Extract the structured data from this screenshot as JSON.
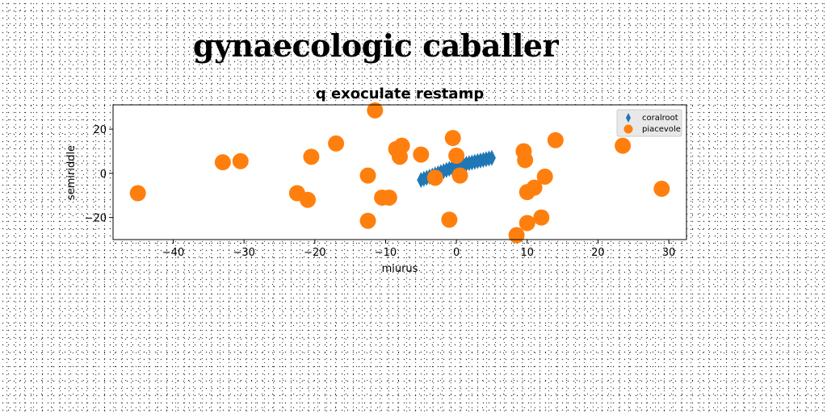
{
  "page": {
    "title": "gynaecologic caballer"
  },
  "chart_data": {
    "type": "scatter",
    "title": "q exoculate restamp",
    "xlabel": "miurus",
    "ylabel": "semiriddle",
    "xlim": [
      -48.5,
      32.5
    ],
    "ylim": [
      -30,
      31
    ],
    "xticks": [
      -40,
      -30,
      -20,
      -10,
      0,
      10,
      20,
      30
    ],
    "yticks": [
      -20,
      0,
      20
    ],
    "grid": false,
    "legend_position": "top-right",
    "series": [
      {
        "name": "coralroot",
        "marker": "thin-diamond",
        "color": "#1f77b4",
        "x": [
          -5.0,
          -4.6,
          -4.2,
          -3.8,
          -3.4,
          -3.0,
          -2.6,
          -2.2,
          -1.8,
          -1.4,
          -1.0,
          -0.6,
          -0.2,
          0.2,
          0.6,
          1.0,
          1.4,
          1.8,
          2.2,
          2.6,
          3.0,
          3.4,
          3.8,
          4.2,
          4.6,
          5.0
        ],
        "y": [
          -3.0,
          -2.5,
          -2.0,
          -1.5,
          -1.0,
          -0.5,
          0.0,
          0.5,
          1.0,
          1.5,
          2.0,
          2.4,
          2.8,
          3.2,
          3.6,
          4.0,
          4.3,
          4.6,
          4.9,
          5.2,
          5.5,
          5.8,
          6.1,
          6.4,
          6.7,
          7.0
        ]
      },
      {
        "name": "piacevole",
        "marker": "circle",
        "color": "#ff7f0e",
        "x": [
          -45,
          -33,
          -30.5,
          -22.5,
          -21,
          -20.5,
          -17,
          -12.5,
          -12.5,
          -11.5,
          -10.5,
          -9.5,
          -8.5,
          -8,
          -7.7,
          -5,
          -3,
          -1,
          -0.5,
          0,
          0.5,
          8.5,
          9.5,
          9.7,
          10,
          10,
          11,
          12,
          12.5,
          14,
          23.5,
          29
        ],
        "y": [
          -9,
          5,
          5.5,
          -9,
          -12,
          7.5,
          13.5,
          -1,
          -21.5,
          28.5,
          -11,
          -11,
          11,
          7.5,
          12.5,
          8.5,
          -2,
          -21,
          16,
          8,
          -1,
          -28,
          10,
          6,
          -8.5,
          -22.5,
          -6.5,
          -20,
          -1.5,
          15,
          12.5,
          -7
        ]
      }
    ]
  }
}
